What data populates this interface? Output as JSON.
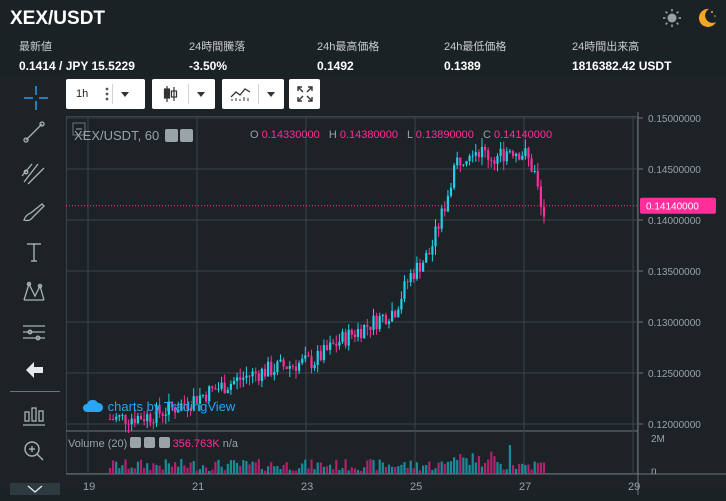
{
  "header": {
    "pair": "XEX/USDT",
    "sun_icon": "sun-icon",
    "moon_icon": "moon-icon"
  },
  "stats": [
    {
      "label": "最新値",
      "value": "0.1414 / JPY 15.5229"
    },
    {
      "label": "24時間騰落",
      "value": "-3.50%"
    },
    {
      "label": "24h最高価格",
      "value": "0.1492"
    },
    {
      "label": "24h最低価格",
      "value": "0.1389"
    },
    {
      "label": "24時間出来高",
      "value": "1816382.42 USDT"
    }
  ],
  "toolbar": {
    "interval": "1h"
  },
  "legend": {
    "symbol": "XEX/USDT, 60",
    "o_label": "O",
    "o": "0.14330000",
    "h_label": "H",
    "h": "0.14380000",
    "l_label": "L",
    "l": "0.13890000",
    "c_label": "C",
    "c": "0.14140000"
  },
  "watermark": "charts by TradingView",
  "volume": {
    "label": "Volume (20)",
    "value": "356.763K",
    "na": "n/a"
  },
  "price_axis": {
    "ticks": [
      "0.15000000",
      "0.14500000",
      "0.14000000",
      "0.13500000",
      "0.13000000",
      "0.12500000",
      "0.12000000"
    ],
    "current": "0.14140000"
  },
  "volume_axis": {
    "ticks": [
      "2M",
      "n"
    ]
  },
  "time_axis": {
    "ticks": [
      "19",
      "21",
      "23",
      "25",
      "27",
      "29"
    ]
  },
  "colors": {
    "up": "#1fd1e6",
    "down": "#ff2e9a",
    "background": "#1c2226",
    "grid": "#3a4449"
  }
}
